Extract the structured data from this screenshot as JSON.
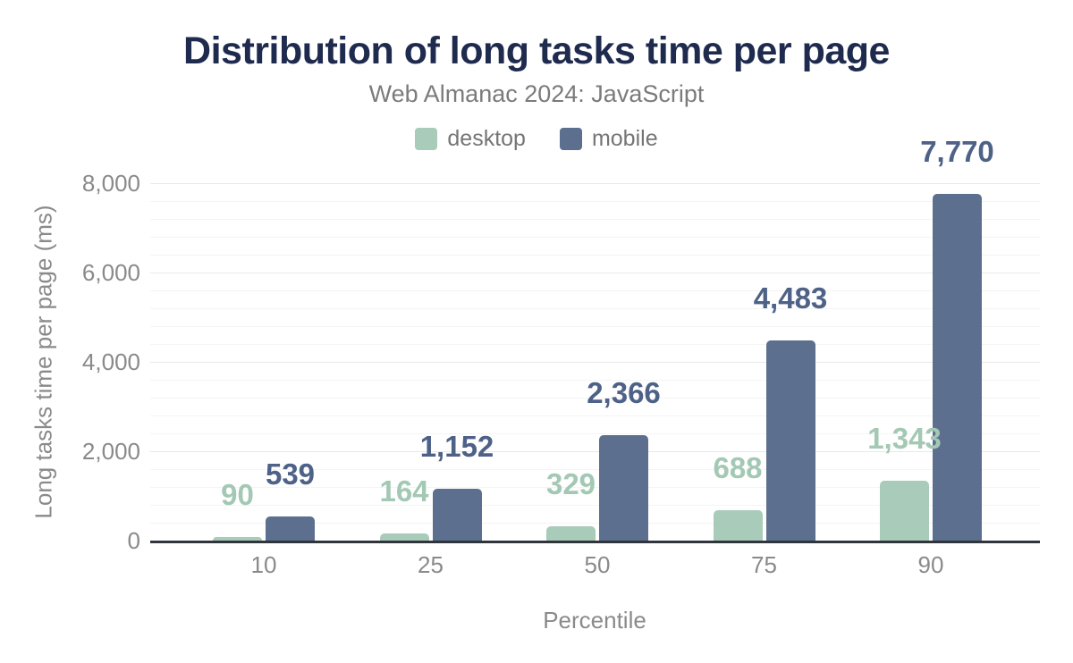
{
  "header": {
    "title": "Distribution of long tasks time per page",
    "subtitle": "Web Almanac 2024: JavaScript"
  },
  "chart_data": {
    "type": "bar",
    "title": "Distribution of long tasks time per page",
    "subtitle": "Web Almanac 2024: JavaScript",
    "xlabel": "Percentile",
    "ylabel": "Long tasks time per page (ms)",
    "categories": [
      "10",
      "25",
      "50",
      "75",
      "90"
    ],
    "series": [
      {
        "name": "desktop",
        "color": "#a9cbba",
        "label_color": "#a3c8b4",
        "values": [
          90,
          164,
          329,
          688,
          1343
        ],
        "value_labels": [
          "90",
          "164",
          "329",
          "688",
          "1,343"
        ]
      },
      {
        "name": "mobile",
        "color": "#5d6f8e",
        "label_color": "#4e6187",
        "values": [
          539,
          1152,
          2366,
          4483,
          7770
        ],
        "value_labels": [
          "539",
          "1,152",
          "2,366",
          "4,483",
          "7,770"
        ]
      }
    ],
    "ylim": [
      0,
      8000
    ],
    "yticks": [
      0,
      2000,
      4000,
      6000,
      8000
    ],
    "ytick_labels": [
      "0",
      "2,000",
      "4,000",
      "6,000",
      "8,000"
    ],
    "minor_grid_step": 400,
    "grid": true,
    "legend_position": "top"
  },
  "colors": {
    "title": "#1f2b4e",
    "subtitle": "#7b7b7b",
    "axis_text": "#8a8a8a",
    "legend_text": "#757575",
    "axis_line": "#30343b",
    "grid_major": "#e9e9e9",
    "grid_minor": "#f4f4f4",
    "background": "#ffffff"
  }
}
